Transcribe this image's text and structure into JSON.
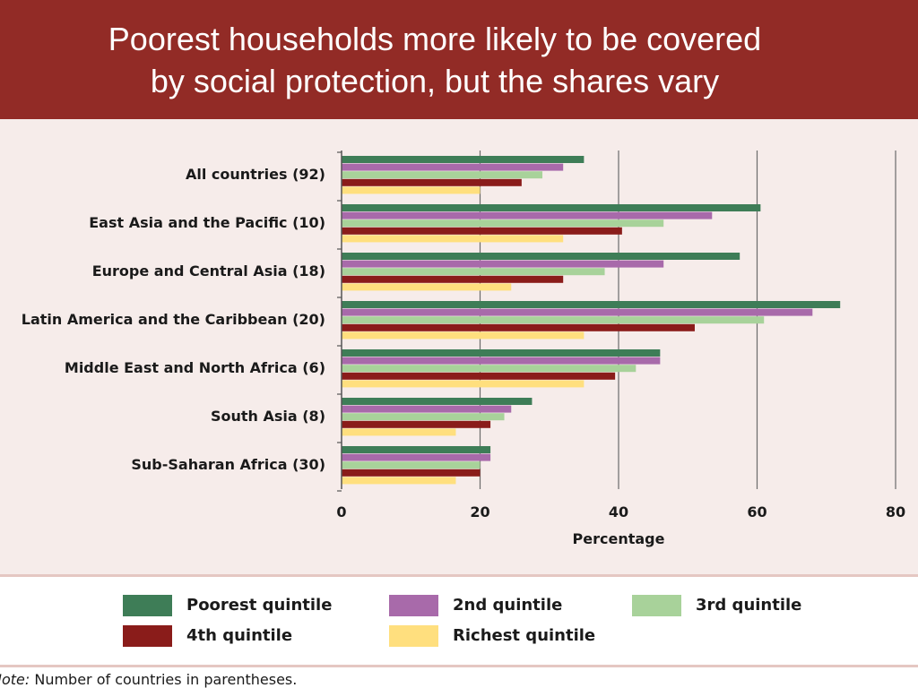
{
  "header": {
    "title_line1": "Poorest households more likely to be covered",
    "title_line2": "by social protection, but the shares vary"
  },
  "colors": {
    "header_bg": "#922b26",
    "panel_bg": "#f6ecea"
  },
  "chart_data": {
    "type": "bar",
    "orientation": "horizontal",
    "title": "Poorest households more likely to be covered by social protection, but the shares vary",
    "xlabel": "Percentage",
    "ylabel": "",
    "xlim": [
      0,
      80
    ],
    "xticks": [
      0,
      20,
      40,
      60,
      80
    ],
    "grid": true,
    "legend_position": "bottom",
    "categories": [
      "All countries (92)",
      "East Asia and the Pacific (10)",
      "Europe and Central Asia (18)",
      "Latin America and the Caribbean (20)",
      "Middle East and North Africa (6)",
      "South Asia (8)",
      "Sub-Saharan Africa (30)"
    ],
    "series": [
      {
        "name": "Poorest quintile",
        "color": "#3e7d57",
        "values": [
          35,
          60.5,
          57.5,
          72,
          46,
          27.5,
          21.5
        ]
      },
      {
        "name": "2nd quintile",
        "color": "#a86aaa",
        "values": [
          32,
          53.5,
          46.5,
          68,
          46,
          24.5,
          21.5
        ]
      },
      {
        "name": "3rd quintile",
        "color": "#a8d29a",
        "values": [
          29,
          46.5,
          38,
          61,
          42.5,
          23.5,
          20
        ]
      },
      {
        "name": "4th quintile",
        "color": "#8a1c1a",
        "values": [
          26,
          40.5,
          32,
          51,
          39.5,
          21.5,
          20
        ]
      },
      {
        "name": "Richest quintile",
        "color": "#ffdf7e",
        "values": [
          20,
          32,
          24.5,
          35,
          35,
          16.5,
          16.5
        ]
      }
    ]
  },
  "note": {
    "prefix": "Note:",
    "text": " Number of countries in parentheses."
  }
}
